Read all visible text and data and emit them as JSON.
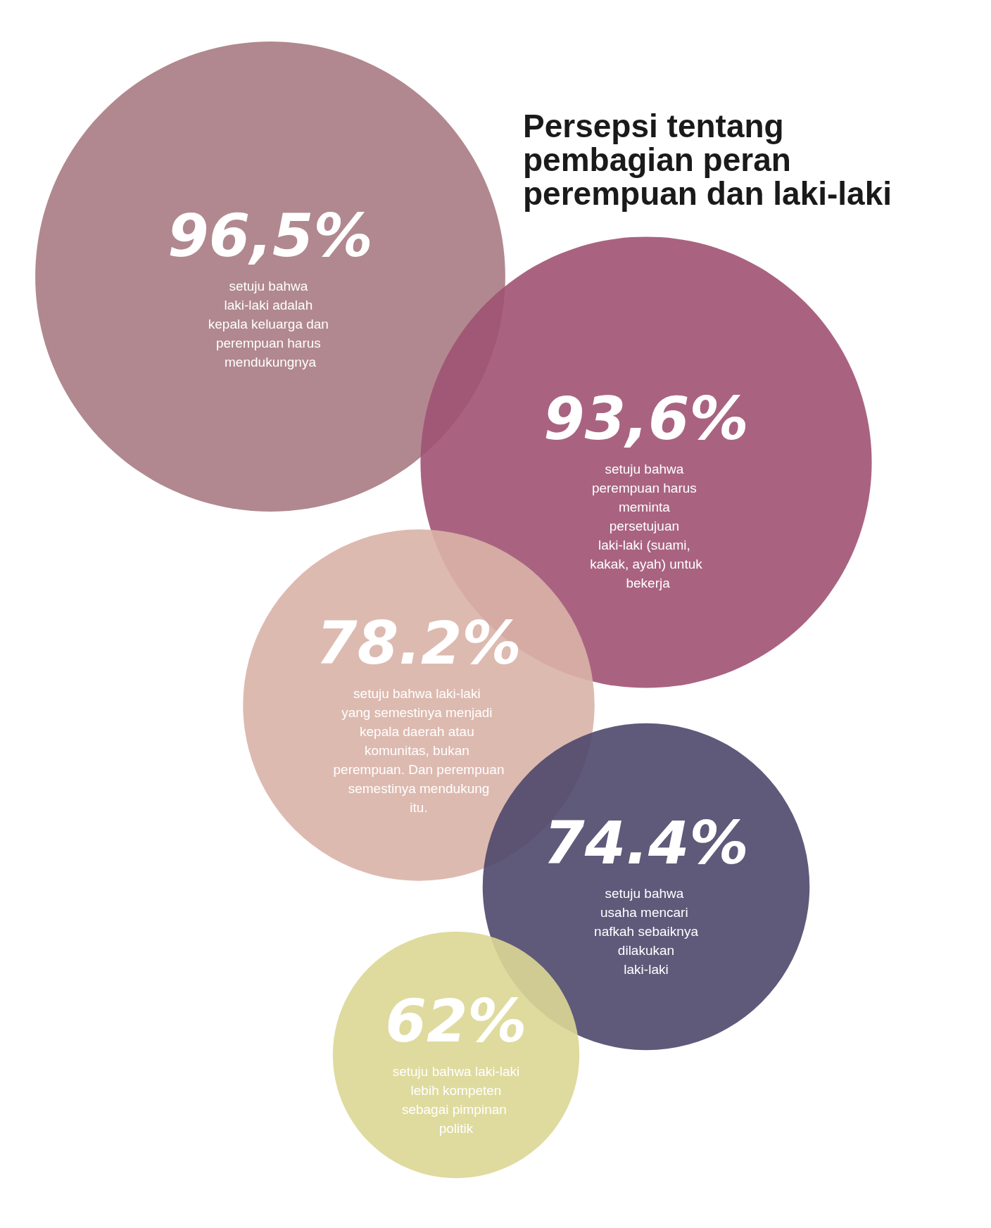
{
  "chart_data": {
    "type": "other",
    "title": "Persepsi tentang pembagian peran perempuan dan laki-laki",
    "categories": [
      "setuju bahwa laki-laki adalah kepala keluarga dan perempuan harus mendukungnya",
      "setuju bahwa perempuan harus meminta persetujuan laki-laki (suami, kakak, ayah) untuk bekerja",
      "setuju bahwa laki-laki yang semestinya menjadi kepala daerah atau komunitas, bukan perempuan. Dan perempuan semestinya mendukung itu.",
      "setuju bahwa usaha mencari nafkah sebaiknya dilakukan laki-laki",
      "setuju bahwa laki-laki lebih kompeten sebagai pimpinan politik"
    ],
    "values": [
      96.5,
      93.6,
      78.2,
      74.4,
      62
    ],
    "value_labels": [
      "96,5%",
      "93,6%",
      "78.2%",
      "74.4%",
      "62%"
    ],
    "colors": [
      "#a97b83",
      "#a05273",
      "#d9b3a7",
      "#4e476b",
      "#dbd795"
    ]
  }
}
